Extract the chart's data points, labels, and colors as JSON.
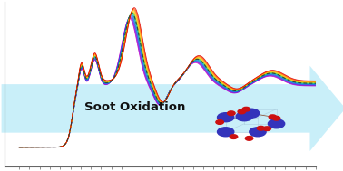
{
  "fig_width": 3.78,
  "fig_height": 1.89,
  "dpi": 100,
  "background": "#ffffff",
  "arrow_color": "#b8eaf8",
  "arrow_alpha": 0.75,
  "arrow_text": "Soot Oxidation",
  "arrow_text_color": "#111111",
  "arrow_text_fontsize": 9.5,
  "n_spectra": 14,
  "colors_outer_to_inner": [
    "#cc00cc",
    "#9900cc",
    "#6622dd",
    "#3344ee",
    "#1166dd",
    "#0099cc",
    "#00bbaa",
    "#22cc55",
    "#aacc00",
    "#ffcc00",
    "#ffaa00",
    "#ff7700",
    "#ff4400",
    "#dd0000"
  ],
  "dashed_color": "#333333",
  "spine_color": "#666666",
  "tick_color": "#666666",
  "struct_K_color": "#3333bb",
  "struct_O_color": "#cc1111",
  "struct_bond_color": "#884422",
  "struct_cell_color": "#aaccdd"
}
